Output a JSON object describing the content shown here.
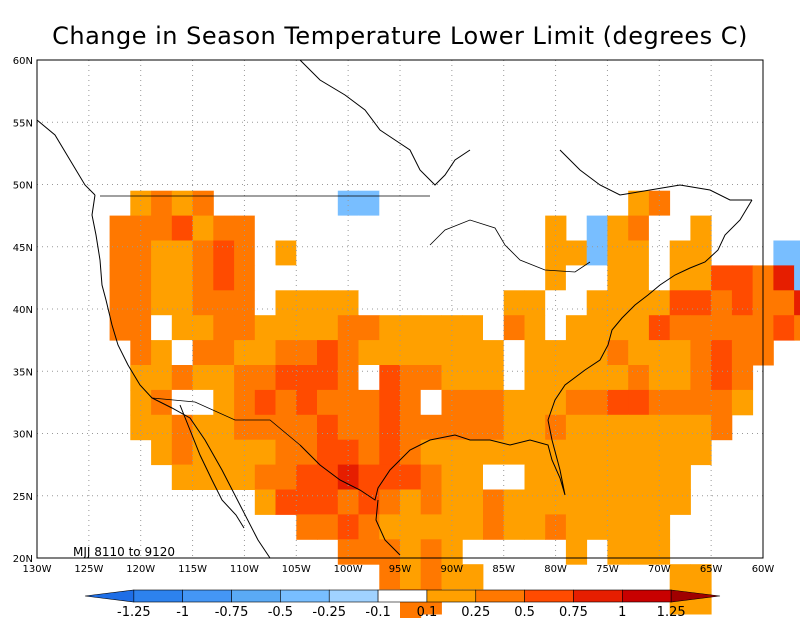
{
  "title": "Change in Season Temperature Lower Limit (degrees C)",
  "annotation": "MJJ 8110 to 9120",
  "axes": {
    "lat_labels": [
      "20N",
      "25N",
      "30N",
      "35N",
      "40N",
      "45N",
      "50N",
      "55N",
      "60N"
    ],
    "lon_labels": [
      "130W",
      "125W",
      "120W",
      "115W",
      "110W",
      "105W",
      "100W",
      "95W",
      "90W",
      "85W",
      "80W",
      "75W",
      "70W",
      "65W",
      "60W"
    ],
    "lat_range": [
      20,
      60
    ],
    "lon_range": [
      -130,
      -60
    ],
    "grid": "dotted"
  },
  "colorbar": {
    "labels": [
      "-1.25",
      "-1",
      "-0.75",
      "-0.5",
      "-0.25",
      "-0.1",
      "0.1",
      "0.25",
      "0.5",
      "0.75",
      "1",
      "1.25"
    ],
    "colors": [
      "#1e6ee6",
      "#2d82ee",
      "#4496f5",
      "#5aaaf5",
      "#78beff",
      "#a0d2ff",
      "#ffffff",
      "#ffa000",
      "#ff7800",
      "#ff4b00",
      "#e61e00",
      "#c80000",
      "#a00000"
    ]
  },
  "legend_codes": {
    "b": "#78beff",
    "w": "#ffffff",
    "o": "#ffa000",
    "m": "#ff7800",
    "r": "#ff4b00",
    "d": "#e61e00"
  },
  "grid_cells": {
    "lon_start": -125,
    "lat_top": 49.5,
    "cell_deg": 2.0,
    "rows": [
      "..omom.w.ww.bbww.ww.....w.om.......",
      ".mmmrommwwwwwww.wwwwwwo.bomwwo.....",
      ".mmoomrmwowwwwwwwwwwwwooboowoo..wbbm",
      ".mmoomrmwwwwwwwwwwwwwwowwoowoorrmdb.",
      ".mmoommmwoooowwwwwwwoowwoooorrmrmmd.",
      ".mmwoommoooommooooowmowoooormmmmmrm.",
      "..mowmmoommrmooooooowoooomooomrmm...",
      "..oomoommrrrmwrmmooowooooomoomrm....",
      "..omwwomrmrmmmrmwmmmooommrrmmmmo....",
      "..oomoommmmrmmrmmmmmoomooooooom.....",
      "...omoooommrrmrmoooooooooooooo......",
      "....oooommrrdrrrmoowwoooooooo.......",
      "........orrrmrmomoomooooooooo.......",
      "..........mmrmooooomoomooooo........",
      "............mmmomo.....o.ooo........",
      "..............momoo.........oo......",
      "...............mm...........oo......",
      "...............m....................",
      "...................................."
    ]
  }
}
